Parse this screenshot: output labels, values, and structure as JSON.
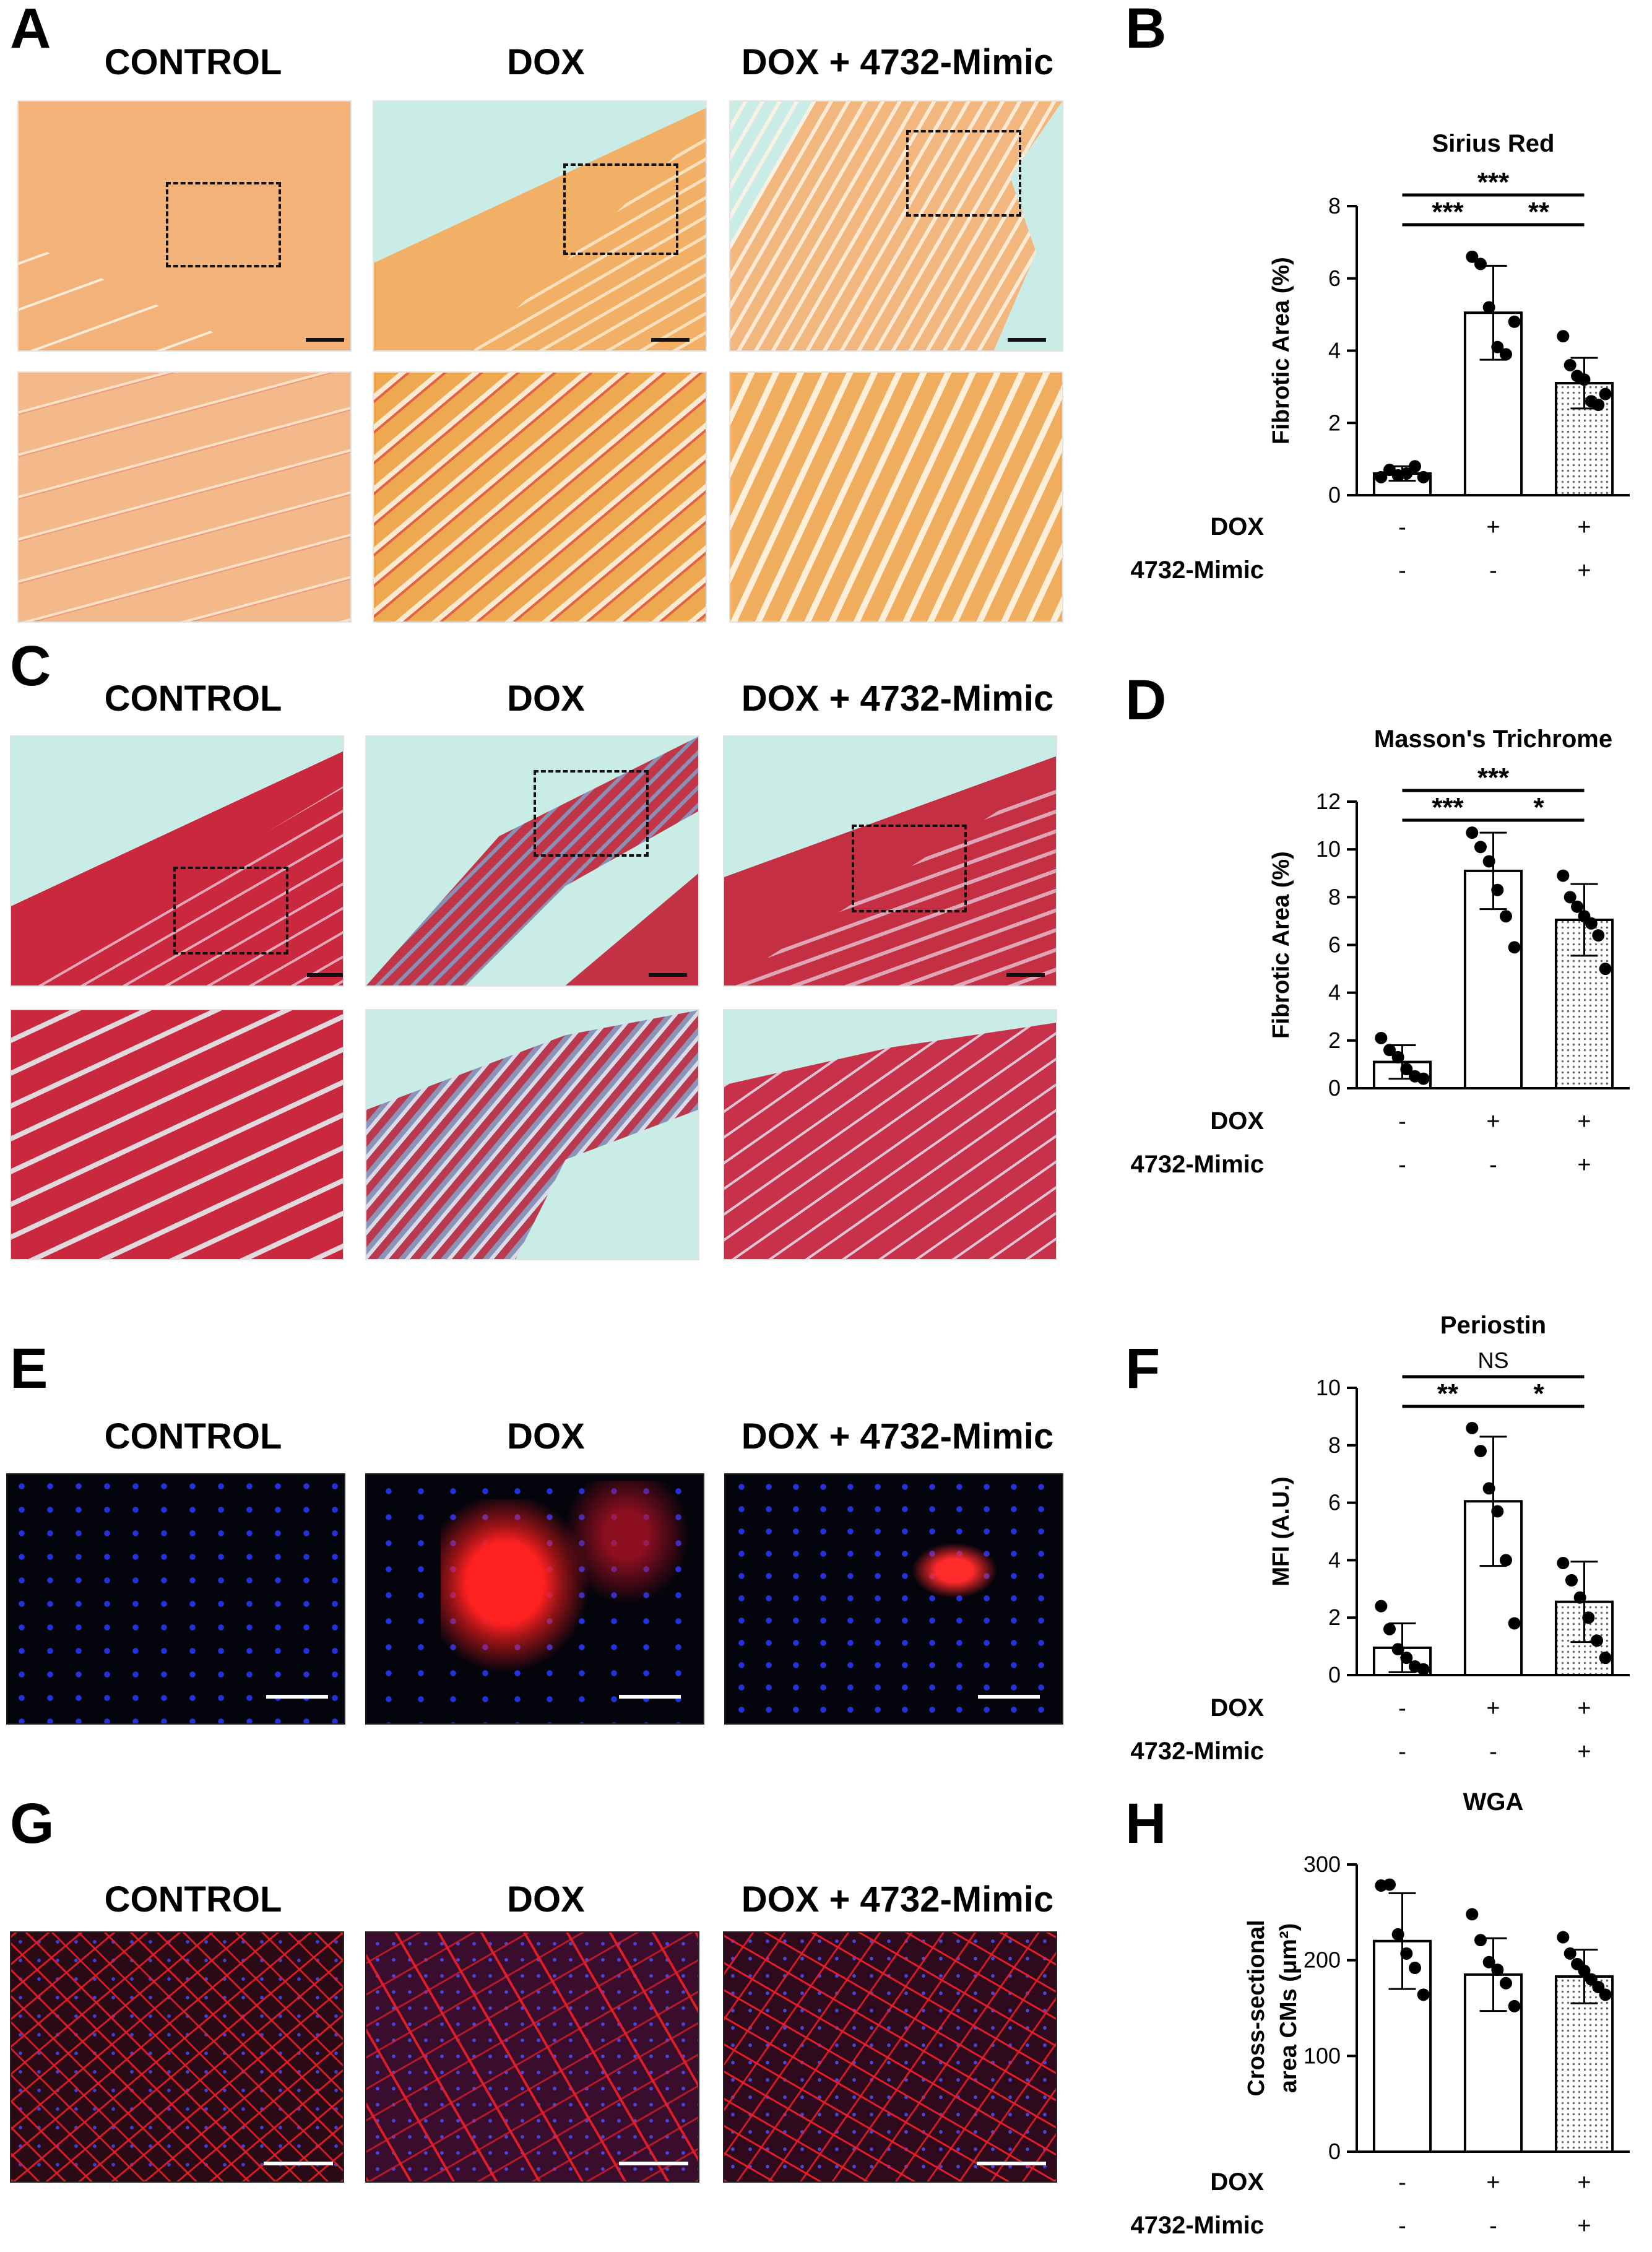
{
  "columns": [
    "CONTROL",
    "DOX",
    "DOX + 4732-Mimic"
  ],
  "panel_letters": {
    "A": "A",
    "B": "B",
    "C": "C",
    "D": "D",
    "E": "E",
    "F": "F",
    "G": "G",
    "H": "H"
  },
  "stain_colors": {
    "sirius_red": {
      "background": "#f0b77f",
      "accent": "#d8283f",
      "slide": "#c9ece6"
    },
    "masson_trichrome": {
      "background": "#c8283e",
      "accent": "#5a7fa8",
      "slide": "#c9ece6"
    },
    "periostin_if": {
      "background": "#050510",
      "nuclei": "#1f2fd8",
      "signal": "#ff1a1a"
    },
    "wga_if": {
      "background": "#1a0812",
      "membrane": "#e0202a",
      "nuclei": "#3a3ad0"
    }
  },
  "condition_rows": [
    {
      "label": "DOX",
      "values": [
        "-",
        "+",
        "+"
      ]
    },
    {
      "label": "4732-Mimic",
      "values": [
        "-",
        "-",
        "+"
      ]
    }
  ],
  "chart_data": [
    {
      "type": "bar",
      "title": "Sirius Red",
      "ylabel": "Fibrotic Area (%)",
      "ylim": [
        0,
        8
      ],
      "yticks": [
        0,
        2,
        4,
        6,
        8
      ],
      "categories": [
        "CONTROL",
        "DOX",
        "DOX + 4732-Mimic"
      ],
      "values": [
        0.6,
        5.05,
        3.1
      ],
      "errors": [
        0.2,
        1.3,
        0.7
      ],
      "points": [
        [
          0.5,
          0.7,
          0.55,
          0.6,
          0.8,
          0.5
        ],
        [
          6.6,
          6.4,
          5.2,
          4.1,
          3.9,
          4.8
        ],
        [
          4.4,
          3.6,
          3.3,
          3.2,
          2.6,
          2.5,
          2.8
        ]
      ],
      "bar_fills": [
        "white",
        "white",
        "dotted"
      ],
      "significance": [
        {
          "from": 0,
          "to": 1,
          "label": "***"
        },
        {
          "from": 1,
          "to": 2,
          "label": "**"
        },
        {
          "from": 0,
          "to": 2,
          "label": "***"
        }
      ]
    },
    {
      "type": "bar",
      "title": "Masson's Trichrome",
      "ylabel": "Fibrotic Area (%)",
      "ylim": [
        0,
        12
      ],
      "yticks": [
        0,
        2,
        4,
        6,
        8,
        10,
        12
      ],
      "categories": [
        "CONTROL",
        "DOX",
        "DOX + 4732-Mimic"
      ],
      "values": [
        1.1,
        9.1,
        7.05
      ],
      "errors": [
        0.7,
        1.6,
        1.5
      ],
      "points": [
        [
          2.1,
          1.6,
          1.3,
          0.8,
          0.5,
          0.4
        ],
        [
          10.7,
          10.1,
          9.5,
          8.3,
          7.2,
          5.9
        ],
        [
          8.9,
          8.0,
          7.6,
          7.2,
          6.9,
          6.4,
          5.0
        ]
      ],
      "bar_fills": [
        "white",
        "white",
        "dotted"
      ],
      "significance": [
        {
          "from": 0,
          "to": 1,
          "label": "***"
        },
        {
          "from": 1,
          "to": 2,
          "label": "*"
        },
        {
          "from": 0,
          "to": 2,
          "label": "***"
        }
      ]
    },
    {
      "type": "bar",
      "title": "Periostin",
      "ylabel": "MFI (A.U.)",
      "ylim": [
        0,
        10
      ],
      "yticks": [
        0,
        2,
        4,
        6,
        8,
        10
      ],
      "categories": [
        "CONTROL",
        "DOX",
        "DOX + 4732-Mimic"
      ],
      "values": [
        0.95,
        6.05,
        2.55
      ],
      "errors": [
        0.85,
        2.25,
        1.4
      ],
      "points": [
        [
          2.4,
          1.6,
          0.9,
          0.6,
          0.3,
          0.2
        ],
        [
          8.6,
          7.8,
          6.5,
          5.7,
          4.0,
          1.8
        ],
        [
          3.9,
          3.3,
          2.7,
          2.0,
          1.2,
          0.6
        ]
      ],
      "bar_fills": [
        "white",
        "white",
        "dotted"
      ],
      "significance": [
        {
          "from": 0,
          "to": 1,
          "label": "**"
        },
        {
          "from": 1,
          "to": 2,
          "label": "*"
        },
        {
          "from": 0,
          "to": 2,
          "label": "NS"
        }
      ]
    },
    {
      "type": "bar",
      "title": "WGA",
      "ylabel_lines": [
        "Cross-sectional",
        "area CMs (μm²)"
      ],
      "ylim": [
        0,
        300
      ],
      "yticks": [
        0,
        100,
        200,
        300
      ],
      "categories": [
        "CONTROL",
        "DOX",
        "DOX + 4732-Mimic"
      ],
      "values": [
        220,
        185,
        183
      ],
      "errors": [
        50,
        38,
        28
      ],
      "points": [
        [
          278,
          279,
          227,
          207,
          192,
          164
        ],
        [
          248,
          221,
          198,
          190,
          176,
          152
        ],
        [
          224,
          207,
          196,
          189,
          180,
          172,
          164
        ]
      ],
      "bar_fills": [
        "white",
        "white",
        "dotted"
      ],
      "significance": []
    }
  ]
}
